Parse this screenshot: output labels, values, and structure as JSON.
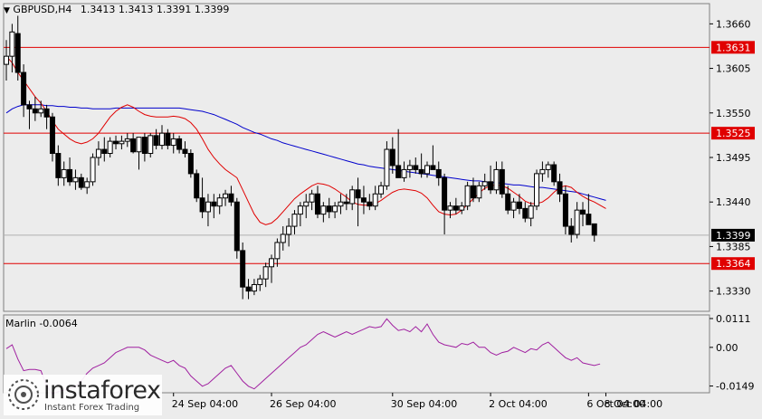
{
  "header": {
    "symbol": "GBPUSD,H4",
    "ohlc": "1.3413 1.3413 1.3391 1.3399"
  },
  "indicator": {
    "label": "Marlin -0.0064"
  },
  "branding": {
    "name": "instaforex",
    "tagline": "Instant Forex Trading"
  },
  "chart_data": {
    "type": "candlestick",
    "price_axis": {
      "ylim": [
        1.3305,
        1.3685
      ],
      "ticks": [
        "1.3660",
        "1.3605",
        "1.3550",
        "1.3495",
        "1.3440",
        "1.3385",
        "1.3330"
      ]
    },
    "levels": [
      {
        "value": 1.3631,
        "label": "1.3631",
        "color": "#e00000"
      },
      {
        "value": 1.3525,
        "label": "1.3525",
        "color": "#e00000"
      },
      {
        "value": 1.3364,
        "label": "1.3364",
        "color": "#e00000"
      }
    ],
    "current_price": {
      "value": 1.3399,
      "label": "1.3399"
    },
    "x_labels": [
      "24 Sep 04:00",
      "26 Sep 04:00",
      "30 Sep 04:00",
      "2 Oct 04:00",
      "6 Oct 04:00",
      "8 Oct 04:00"
    ],
    "candles": [
      [
        1.361,
        1.364,
        1.359,
        1.362
      ],
      [
        1.362,
        1.366,
        1.36,
        1.365
      ],
      [
        1.3648,
        1.367,
        1.359,
        1.36
      ],
      [
        1.36,
        1.361,
        1.3545,
        1.356
      ],
      [
        1.356,
        1.3565,
        1.353,
        1.3555
      ],
      [
        1.3555,
        1.357,
        1.354,
        1.355
      ],
      [
        1.355,
        1.3565,
        1.3545,
        1.3555
      ],
      [
        1.3555,
        1.356,
        1.353,
        1.3545
      ],
      [
        1.3545,
        1.355,
        1.349,
        1.35
      ],
      [
        1.35,
        1.351,
        1.346,
        1.347
      ],
      [
        1.347,
        1.349,
        1.346,
        1.348
      ],
      [
        1.348,
        1.3495,
        1.346,
        1.3465
      ],
      [
        1.3465,
        1.348,
        1.3455,
        1.347
      ],
      [
        1.347,
        1.3475,
        1.3455,
        1.3458
      ],
      [
        1.3458,
        1.347,
        1.345,
        1.3465
      ],
      [
        1.3465,
        1.35,
        1.346,
        1.3495
      ],
      [
        1.3495,
        1.3515,
        1.3485,
        1.3505
      ],
      [
        1.3505,
        1.352,
        1.349,
        1.35
      ],
      [
        1.35,
        1.352,
        1.3495,
        1.3515
      ],
      [
        1.3515,
        1.3522,
        1.3505,
        1.3512
      ],
      [
        1.3512,
        1.3522,
        1.3505,
        1.3515
      ],
      [
        1.3515,
        1.3525,
        1.3508,
        1.3518
      ],
      [
        1.3518,
        1.3525,
        1.35,
        1.3502
      ],
      [
        1.3502,
        1.352,
        1.348,
        1.352
      ],
      [
        1.352,
        1.3525,
        1.349,
        1.35
      ],
      [
        1.35,
        1.3525,
        1.3495,
        1.3522
      ],
      [
        1.3522,
        1.353,
        1.3505,
        1.351
      ],
      [
        1.351,
        1.3535,
        1.3505,
        1.3525
      ],
      [
        1.3525,
        1.353,
        1.3505,
        1.351
      ],
      [
        1.351,
        1.3525,
        1.35,
        1.3518
      ],
      [
        1.3518,
        1.3522,
        1.35,
        1.3505
      ],
      [
        1.3505,
        1.3515,
        1.3495,
        1.35
      ],
      [
        1.35,
        1.3505,
        1.347,
        1.3475
      ],
      [
        1.3475,
        1.348,
        1.344,
        1.3445
      ],
      [
        1.3445,
        1.347,
        1.342,
        1.3428
      ],
      [
        1.3428,
        1.345,
        1.341,
        1.344
      ],
      [
        1.344,
        1.345,
        1.342,
        1.3435
      ],
      [
        1.3435,
        1.345,
        1.3425,
        1.3445
      ],
      [
        1.3445,
        1.3455,
        1.3435,
        1.345
      ],
      [
        1.345,
        1.346,
        1.3435,
        1.344
      ],
      [
        1.344,
        1.3445,
        1.337,
        1.338
      ],
      [
        1.338,
        1.339,
        1.332,
        1.3335
      ],
      [
        1.3335,
        1.3345,
        1.332,
        1.333
      ],
      [
        1.333,
        1.3345,
        1.3325,
        1.3338
      ],
      [
        1.3338,
        1.335,
        1.333,
        1.3345
      ],
      [
        1.3345,
        1.3365,
        1.3335,
        1.336
      ],
      [
        1.336,
        1.3375,
        1.334,
        1.337
      ],
      [
        1.337,
        1.3395,
        1.336,
        1.339
      ],
      [
        1.339,
        1.341,
        1.338,
        1.34
      ],
      [
        1.34,
        1.342,
        1.3385,
        1.341
      ],
      [
        1.341,
        1.343,
        1.34,
        1.3425
      ],
      [
        1.3425,
        1.344,
        1.341,
        1.3435
      ],
      [
        1.3435,
        1.345,
        1.342,
        1.344
      ],
      [
        1.344,
        1.3455,
        1.343,
        1.345
      ],
      [
        1.345,
        1.346,
        1.342,
        1.3425
      ],
      [
        1.3425,
        1.344,
        1.3415,
        1.3435
      ],
      [
        1.3435,
        1.3445,
        1.342,
        1.3428
      ],
      [
        1.3428,
        1.344,
        1.342,
        1.3435
      ],
      [
        1.3435,
        1.345,
        1.3425,
        1.344
      ],
      [
        1.344,
        1.345,
        1.343,
        1.3438
      ],
      [
        1.3438,
        1.346,
        1.343,
        1.3455
      ],
      [
        1.3455,
        1.347,
        1.341,
        1.3445
      ],
      [
        1.3445,
        1.346,
        1.3425,
        1.344
      ],
      [
        1.344,
        1.345,
        1.343,
        1.3435
      ],
      [
        1.3435,
        1.346,
        1.343,
        1.345
      ],
      [
        1.345,
        1.3465,
        1.3445,
        1.346
      ],
      [
        1.346,
        1.3515,
        1.3455,
        1.3505
      ],
      [
        1.3505,
        1.352,
        1.3475,
        1.3485
      ],
      [
        1.3485,
        1.353,
        1.347,
        1.347
      ],
      [
        1.347,
        1.349,
        1.3465,
        1.348
      ],
      [
        1.348,
        1.3492,
        1.347,
        1.3485
      ],
      [
        1.3485,
        1.3495,
        1.3475,
        1.348
      ],
      [
        1.348,
        1.35,
        1.347,
        1.3475
      ],
      [
        1.3475,
        1.349,
        1.347,
        1.3485
      ],
      [
        1.3485,
        1.351,
        1.348,
        1.348
      ],
      [
        1.348,
        1.349,
        1.346,
        1.347
      ],
      [
        1.347,
        1.3475,
        1.34,
        1.343
      ],
      [
        1.343,
        1.344,
        1.342,
        1.3435
      ],
      [
        1.3435,
        1.3445,
        1.3425,
        1.343
      ],
      [
        1.343,
        1.344,
        1.3425,
        1.3435
      ],
      [
        1.3435,
        1.3465,
        1.343,
        1.346
      ],
      [
        1.346,
        1.347,
        1.344,
        1.3445
      ],
      [
        1.3445,
        1.3465,
        1.344,
        1.346
      ],
      [
        1.346,
        1.3475,
        1.3455,
        1.3465
      ],
      [
        1.3465,
        1.3485,
        1.345,
        1.3455
      ],
      [
        1.3455,
        1.349,
        1.345,
        1.348
      ],
      [
        1.348,
        1.349,
        1.3445,
        1.345
      ],
      [
        1.345,
        1.346,
        1.3425,
        1.343
      ],
      [
        1.343,
        1.3445,
        1.342,
        1.344
      ],
      [
        1.344,
        1.345,
        1.3425,
        1.3432
      ],
      [
        1.3432,
        1.344,
        1.3415,
        1.342
      ],
      [
        1.342,
        1.344,
        1.341,
        1.3435
      ],
      [
        1.3435,
        1.348,
        1.343,
        1.3475
      ],
      [
        1.3475,
        1.349,
        1.3465,
        1.348
      ],
      [
        1.348,
        1.349,
        1.347,
        1.3486
      ],
      [
        1.3486,
        1.349,
        1.346,
        1.3465
      ],
      [
        1.3465,
        1.3475,
        1.344,
        1.345
      ],
      [
        1.345,
        1.346,
        1.34,
        1.341
      ],
      [
        1.341,
        1.342,
        1.339,
        1.34
      ],
      [
        1.34,
        1.344,
        1.3395,
        1.343
      ],
      [
        1.343,
        1.344,
        1.341,
        1.3425
      ],
      [
        1.3425,
        1.345,
        1.3415,
        1.3412
      ],
      [
        1.3413,
        1.3413,
        1.3391,
        1.3399
      ]
    ],
    "ma_series": [
      {
        "color": "#0000cc",
        "values": [
          1.355,
          1.3555,
          1.3558,
          1.356,
          1.356,
          1.356,
          1.356,
          1.3559,
          1.3559,
          1.3558,
          1.3558,
          1.3557,
          1.3557,
          1.3556,
          1.3556,
          1.3555,
          1.3555,
          1.3555,
          1.3555,
          1.3556,
          1.3556,
          1.3556,
          1.3556,
          1.3556,
          1.3556,
          1.3556,
          1.3556,
          1.3556,
          1.3556,
          1.3556,
          1.3556,
          1.3555,
          1.3554,
          1.3553,
          1.3552,
          1.355,
          1.3548,
          1.3545,
          1.3542,
          1.3539,
          1.3536,
          1.3532,
          1.3529,
          1.3526,
          1.3524,
          1.3521,
          1.3518,
          1.3516,
          1.3513,
          1.3511,
          1.3509,
          1.3507,
          1.3505,
          1.3503,
          1.3501,
          1.3499,
          1.3497,
          1.3495,
          1.3493,
          1.3491,
          1.3489,
          1.3487,
          1.3486,
          1.3484,
          1.3483,
          1.3482,
          1.3481,
          1.348,
          1.3479,
          1.3478,
          1.3477,
          1.3476,
          1.3475,
          1.3474,
          1.3473,
          1.3472,
          1.3471,
          1.347,
          1.3469,
          1.3468,
          1.3467,
          1.3466,
          1.3466,
          1.3465,
          1.3464,
          1.3464,
          1.3463,
          1.3462,
          1.3461,
          1.3461,
          1.346,
          1.3459,
          1.3458,
          1.3458,
          1.3457,
          1.3456,
          1.3455,
          1.3454,
          1.3453,
          1.3452,
          1.345,
          1.3448,
          1.3446,
          1.3444,
          1.3442
        ]
      },
      {
        "color": "#e00000",
        "values": [
          1.362,
          1.3612,
          1.36,
          1.359,
          1.358,
          1.357,
          1.3562,
          1.3552,
          1.354,
          1.353,
          1.3524,
          1.3518,
          1.3514,
          1.3512,
          1.3514,
          1.3518,
          1.3525,
          1.3535,
          1.3545,
          1.3552,
          1.3557,
          1.356,
          1.3557,
          1.3552,
          1.3548,
          1.3546,
          1.3545,
          1.3545,
          1.3545,
          1.3546,
          1.3545,
          1.3543,
          1.3538,
          1.353,
          1.3518,
          1.3505,
          1.3495,
          1.3487,
          1.348,
          1.3475,
          1.347,
          1.3455,
          1.344,
          1.3425,
          1.3415,
          1.3412,
          1.3414,
          1.342,
          1.3428,
          1.3436,
          1.3444,
          1.345,
          1.3455,
          1.346,
          1.3463,
          1.3462,
          1.346,
          1.3456,
          1.3451,
          1.3446,
          1.344,
          1.3437,
          1.3436,
          1.3436,
          1.3438,
          1.3442,
          1.3447,
          1.3452,
          1.3455,
          1.3456,
          1.3455,
          1.3454,
          1.3451,
          1.3445,
          1.3436,
          1.3428,
          1.3425,
          1.3424,
          1.3425,
          1.343,
          1.3437,
          1.3444,
          1.3451,
          1.3457,
          1.346,
          1.3461,
          1.346,
          1.3457,
          1.3452,
          1.3447,
          1.3441,
          1.3438,
          1.3438,
          1.344,
          1.3445,
          1.3452,
          1.3458,
          1.346,
          1.3458,
          1.3452,
          1.3447,
          1.3443,
          1.344,
          1.3436,
          1.3432
        ]
      }
    ],
    "marlin": {
      "ylim": [
        -0.0175,
        0.0125
      ],
      "ticks": [
        "0.0111",
        "0.00",
        "-0.0149"
      ],
      "color": "#a020a0",
      "values": [
        -0.0005,
        0.001,
        -0.0045,
        -0.009,
        -0.0085,
        -0.0085,
        -0.009,
        -0.015,
        -0.018,
        -0.017,
        -0.0165,
        -0.016,
        -0.015,
        -0.013,
        -0.01,
        -0.008,
        -0.007,
        -0.006,
        -0.004,
        -0.002,
        -0.001,
        0.0,
        0.0,
        0.0,
        -0.001,
        -0.003,
        -0.004,
        -0.005,
        -0.006,
        -0.005,
        -0.007,
        -0.008,
        -0.011,
        -0.013,
        -0.015,
        -0.014,
        -0.012,
        -0.01,
        -0.008,
        -0.007,
        -0.01,
        -0.013,
        -0.015,
        -0.016,
        -0.014,
        -0.012,
        -0.01,
        -0.008,
        -0.006,
        -0.004,
        -0.002,
        0.0,
        0.001,
        0.003,
        0.005,
        0.006,
        0.005,
        0.004,
        0.005,
        0.006,
        0.005,
        0.006,
        0.007,
        0.008,
        0.0075,
        0.008,
        0.011,
        0.0085,
        0.0065,
        0.007,
        0.006,
        0.008,
        0.006,
        0.009,
        0.005,
        0.002,
        0.001,
        0.0005,
        0.0,
        0.0015,
        0.001,
        0.002,
        0.0,
        0.0,
        -0.002,
        -0.003,
        -0.002,
        -0.0015,
        0.0,
        -0.001,
        -0.002,
        -0.0005,
        -0.001,
        0.001,
        0.002,
        0.0,
        -0.002,
        -0.004,
        -0.005,
        -0.004,
        -0.006,
        -0.0065,
        -0.007,
        -0.0064
      ]
    }
  }
}
